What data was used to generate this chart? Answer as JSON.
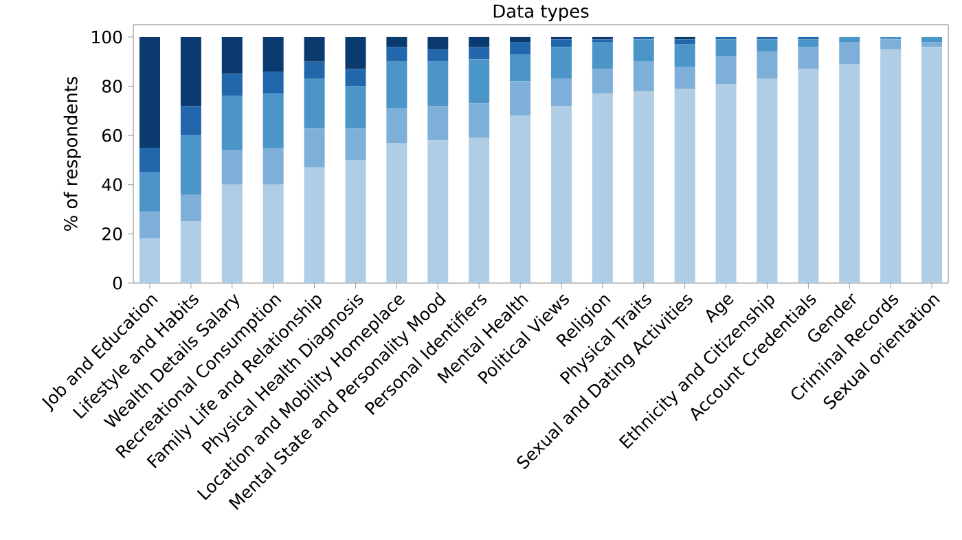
{
  "chart_data": {
    "type": "bar",
    "stacked": true,
    "title": "Data types",
    "ylabel": "% of respondents",
    "categories": [
      "Job and Education",
      "Lifestyle and Habits",
      "Wealth Details Salary",
      "Recreational Consumption",
      "Family Life and Relationship",
      "Physical Health Diagnosis",
      "Location and Mobility Homeplace",
      "Mental State and Personality Mood",
      "Personal Identifiers",
      "Mental Health",
      "Political Views",
      "Religion",
      "Physical Traits",
      "Sexual and Dating Activities",
      "Age",
      "Ethnicity and Citizenship",
      "Account Credentials",
      "Gender",
      "Criminal Records",
      "Sexual orientation"
    ],
    "series": [
      {
        "color": "#afcde4",
        "values": [
          18,
          25,
          40,
          40,
          47,
          50,
          57,
          58,
          59,
          68,
          72,
          77,
          78,
          79,
          81,
          83,
          87,
          89,
          95,
          96
        ]
      },
      {
        "color": "#7dafd9",
        "values": [
          11,
          11,
          14,
          15,
          16,
          13,
          14,
          14,
          14,
          14,
          11,
          10,
          12,
          9,
          11,
          11,
          9,
          9,
          4,
          2
        ]
      },
      {
        "color": "#4c95c8",
        "values": [
          16,
          24,
          22,
          22,
          20,
          17,
          19,
          18,
          18,
          11,
          13,
          11,
          9,
          9,
          7,
          5,
          3,
          2,
          1,
          2
        ]
      },
      {
        "color": "#2266ab",
        "values": [
          10,
          12,
          9,
          9,
          7,
          7,
          6,
          5,
          5,
          5,
          3,
          1,
          1,
          2,
          1,
          1,
          1,
          0,
          0,
          0
        ]
      },
      {
        "color": "#0b3b6e",
        "values": [
          45,
          28,
          15,
          14,
          10,
          13,
          4,
          5,
          4,
          2,
          1,
          1,
          0,
          1,
          0,
          0,
          0,
          0,
          0,
          0
        ]
      }
    ],
    "ylim": [
      0,
      105
    ],
    "yticks": [
      0,
      20,
      40,
      60,
      80,
      100
    ],
    "grid": false
  }
}
